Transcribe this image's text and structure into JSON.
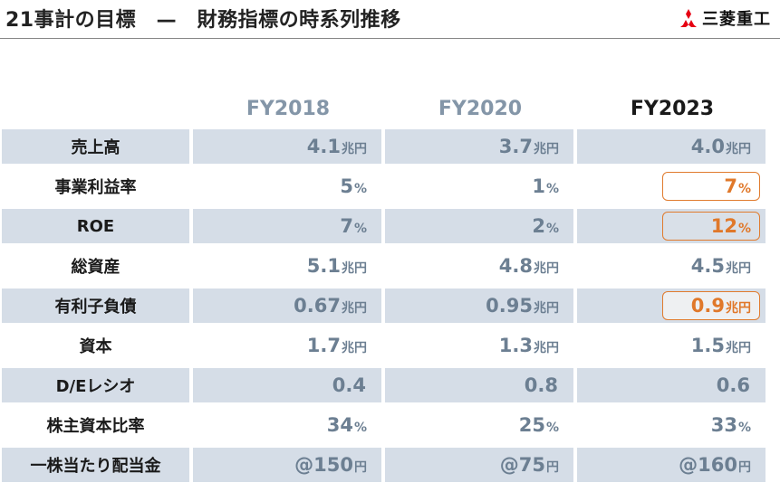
{
  "header": {
    "title": "21事計の目標　—　財務指標の時系列推移",
    "logo_text": "三菱重工",
    "logo_icon": "three-diamonds-icon"
  },
  "colors": {
    "accent": "#e0782a",
    "shade": "#d5dde7",
    "value": "#6c7f92",
    "header_muted": "#8496a8"
  },
  "table": {
    "columns": [
      "FY2018",
      "FY2020",
      "FY2023"
    ],
    "rows": [
      {
        "label": "売上高",
        "values": [
          {
            "num": "4.1",
            "unit": "兆円"
          },
          {
            "num": "3.7",
            "unit": "兆円"
          },
          {
            "num": "4.0",
            "unit": "兆円"
          }
        ],
        "highlight": false
      },
      {
        "label": "事業利益率",
        "values": [
          {
            "num": "5",
            "unit": "%"
          },
          {
            "num": "1",
            "unit": "%"
          },
          {
            "num": "7",
            "unit": "%"
          }
        ],
        "highlight": true
      },
      {
        "label": "ROE",
        "values": [
          {
            "num": "7",
            "unit": "%"
          },
          {
            "num": "2",
            "unit": "%"
          },
          {
            "num": "12",
            "unit": "%"
          }
        ],
        "highlight": true
      },
      {
        "label": "総資産",
        "values": [
          {
            "num": "5.1",
            "unit": "兆円"
          },
          {
            "num": "4.8",
            "unit": "兆円"
          },
          {
            "num": "4.5",
            "unit": "兆円"
          }
        ],
        "highlight": false
      },
      {
        "label": "有利子負債",
        "values": [
          {
            "num": "0.67",
            "unit": "兆円"
          },
          {
            "num": "0.95",
            "unit": "兆円"
          },
          {
            "num": "0.9",
            "unit": "兆円"
          }
        ],
        "highlight": true
      },
      {
        "label": "資本",
        "values": [
          {
            "num": "1.7",
            "unit": "兆円"
          },
          {
            "num": "1.3",
            "unit": "兆円"
          },
          {
            "num": "1.5",
            "unit": "兆円"
          }
        ],
        "highlight": false
      },
      {
        "label": "D/Eレシオ",
        "values": [
          {
            "num": "0.4",
            "unit": ""
          },
          {
            "num": "0.8",
            "unit": ""
          },
          {
            "num": "0.6",
            "unit": ""
          }
        ],
        "highlight": false
      },
      {
        "label": "株主資本比率",
        "values": [
          {
            "num": "34",
            "unit": "%"
          },
          {
            "num": "25",
            "unit": "%"
          },
          {
            "num": "33",
            "unit": "%"
          }
        ],
        "highlight": false
      },
      {
        "label": "一株当たり配当金",
        "values": [
          {
            "num": "@150",
            "unit": "円"
          },
          {
            "num": "@75",
            "unit": "円"
          },
          {
            "num": "@160",
            "unit": "円"
          }
        ],
        "highlight": false
      }
    ]
  }
}
